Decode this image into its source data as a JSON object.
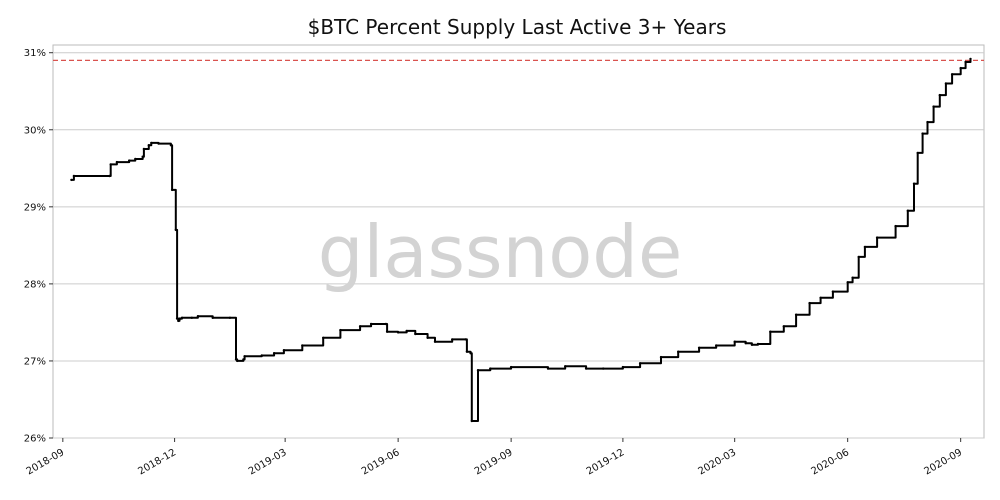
{
  "title": "$BTC Percent Supply Last Active 3+ Years",
  "watermark": "glassnode",
  "colors": {
    "series": "#000000",
    "reference_line": "#d9534f",
    "grid": "#cccccc",
    "axes": "#bbbbbb",
    "background": "#ffffff"
  },
  "chart_data": {
    "type": "line",
    "title": "$BTC Percent Supply Last Active 3+ Years",
    "xlabel": "",
    "ylabel": "",
    "xlim": [
      "2018-08-24",
      "2020-09-20"
    ],
    "ylim": [
      26,
      31.1
    ],
    "grid": "horizontal",
    "legend": "none",
    "x_ticks": [
      "2018-09",
      "2018-12",
      "2019-03",
      "2019-06",
      "2019-09",
      "2019-12",
      "2020-03",
      "2020-06",
      "2020-09"
    ],
    "y_ticks": [
      "26%",
      "27%",
      "28%",
      "29%",
      "30%",
      "31%"
    ],
    "reference_line": {
      "y": 30.9,
      "style": "dashed"
    },
    "series": [
      {
        "x": [
          "2018-09-08",
          "2018-09-10",
          "2018-10-09",
          "2018-10-10",
          "2018-10-15",
          "2018-10-25",
          "2018-10-30",
          "2018-11-05",
          "2018-11-06",
          "2018-11-10",
          "2018-11-12",
          "2018-11-18",
          "2018-11-28",
          "2018-11-29",
          "2018-12-02",
          "2018-12-03",
          "2018-12-04",
          "2018-12-05",
          "2018-12-06",
          "2018-12-07",
          "2018-12-15",
          "2018-12-20",
          "2019-01-01",
          "2019-01-15",
          "2019-01-20",
          "2019-01-21",
          "2019-01-26",
          "2019-01-27",
          "2019-02-10",
          "2019-02-20",
          "2019-02-28",
          "2019-03-15",
          "2019-04-01",
          "2019-04-15",
          "2019-05-01",
          "2019-05-10",
          "2019-05-22",
          "2019-05-23",
          "2019-06-01",
          "2019-06-08",
          "2019-06-15",
          "2019-06-25",
          "2019-07-01",
          "2019-07-15",
          "2019-07-26",
          "2019-07-27",
          "2019-07-30",
          "2019-07-31",
          "2019-08-05",
          "2019-08-15",
          "2019-09-01",
          "2019-10-01",
          "2019-10-15",
          "2019-11-01",
          "2019-11-15",
          "2019-12-01",
          "2019-12-15",
          "2020-01-01",
          "2020-01-15",
          "2020-02-01",
          "2020-02-15",
          "2020-03-01",
          "2020-03-10",
          "2020-03-15",
          "2020-03-20",
          "2020-03-30",
          "2020-04-10",
          "2020-04-20",
          "2020-05-01",
          "2020-05-10",
          "2020-05-20",
          "2020-06-01",
          "2020-06-05",
          "2020-06-10",
          "2020-06-15",
          "2020-06-25",
          "2020-07-10",
          "2020-07-20",
          "2020-07-25",
          "2020-07-28",
          "2020-08-01",
          "2020-08-05",
          "2020-08-10",
          "2020-08-15",
          "2020-08-20",
          "2020-08-25",
          "2020-09-01",
          "2020-09-05",
          "2020-09-09"
        ],
        "y": [
          29.35,
          29.4,
          29.4,
          29.55,
          29.58,
          29.6,
          29.62,
          29.65,
          29.75,
          29.8,
          29.83,
          29.82,
          29.8,
          29.22,
          28.7,
          27.55,
          27.52,
          27.55,
          27.55,
          27.56,
          27.56,
          27.58,
          27.56,
          27.56,
          27.02,
          27.0,
          27.02,
          27.06,
          27.07,
          27.1,
          27.14,
          27.2,
          27.3,
          27.4,
          27.45,
          27.48,
          27.48,
          27.38,
          27.37,
          27.39,
          27.35,
          27.3,
          27.25,
          27.28,
          27.28,
          27.12,
          27.1,
          26.22,
          26.88,
          26.9,
          26.92,
          26.9,
          26.93,
          26.9,
          26.9,
          26.92,
          26.97,
          27.05,
          27.12,
          27.17,
          27.2,
          27.25,
          27.23,
          27.21,
          27.22,
          27.38,
          27.45,
          27.6,
          27.75,
          27.82,
          27.9,
          28.02,
          28.08,
          28.35,
          28.48,
          28.6,
          28.75,
          28.95,
          29.3,
          29.7,
          29.95,
          30.1,
          30.3,
          30.45,
          30.6,
          30.72,
          30.8,
          30.88,
          30.92
        ]
      }
    ]
  }
}
